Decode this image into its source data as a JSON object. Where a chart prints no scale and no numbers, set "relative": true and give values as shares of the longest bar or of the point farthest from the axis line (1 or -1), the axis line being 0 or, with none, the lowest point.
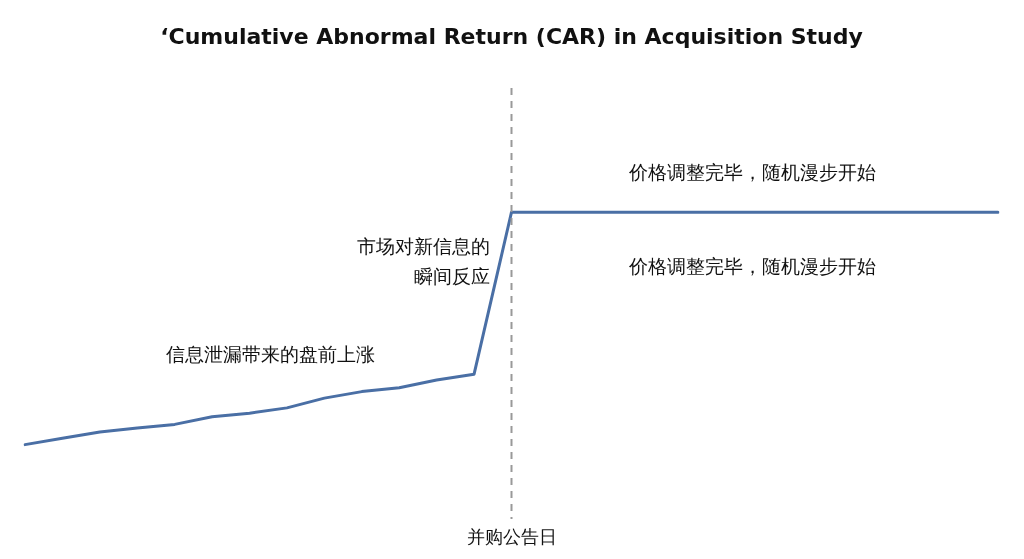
{
  "chart_data": {
    "type": "line",
    "title": "‘Cumulative Abnormal Return (CAR) in Acquisition Study",
    "relative": true,
    "categories": [
      null,
      null,
      null,
      null,
      null,
      null,
      null,
      null,
      null,
      null,
      null,
      null,
      null,
      null,
      null,
      null,
      null,
      null,
      null,
      null,
      null,
      null,
      null,
      null,
      null,
      null,
      null
    ],
    "series": [
      {
        "color": "#4a6fa5",
        "values": [
          0,
          0.027,
          0.054,
          0.071,
          0.087,
          0.12,
          0.135,
          0.158,
          0.2,
          0.228,
          0.245,
          0.278,
          0.303,
          1,
          1,
          1,
          1,
          1,
          1,
          1,
          1,
          1,
          1,
          1,
          1,
          1,
          1
        ]
      }
    ],
    "ref_lines": [
      {
        "axis": "x",
        "label": "并购公告日",
        "color": "#999999",
        "line_style": "dashed"
      }
    ],
    "annotations": [
      "信息泄漏带来的盘前上涨",
      "市场对新信息的瞬间反应",
      "价格调整完毕，随机漫步开始",
      "价格调整完毕，随机漫步开始"
    ],
    "grid": false,
    "legend": false,
    "marker": "none",
    "line_style": "solid",
    "tick_labels": false
  }
}
